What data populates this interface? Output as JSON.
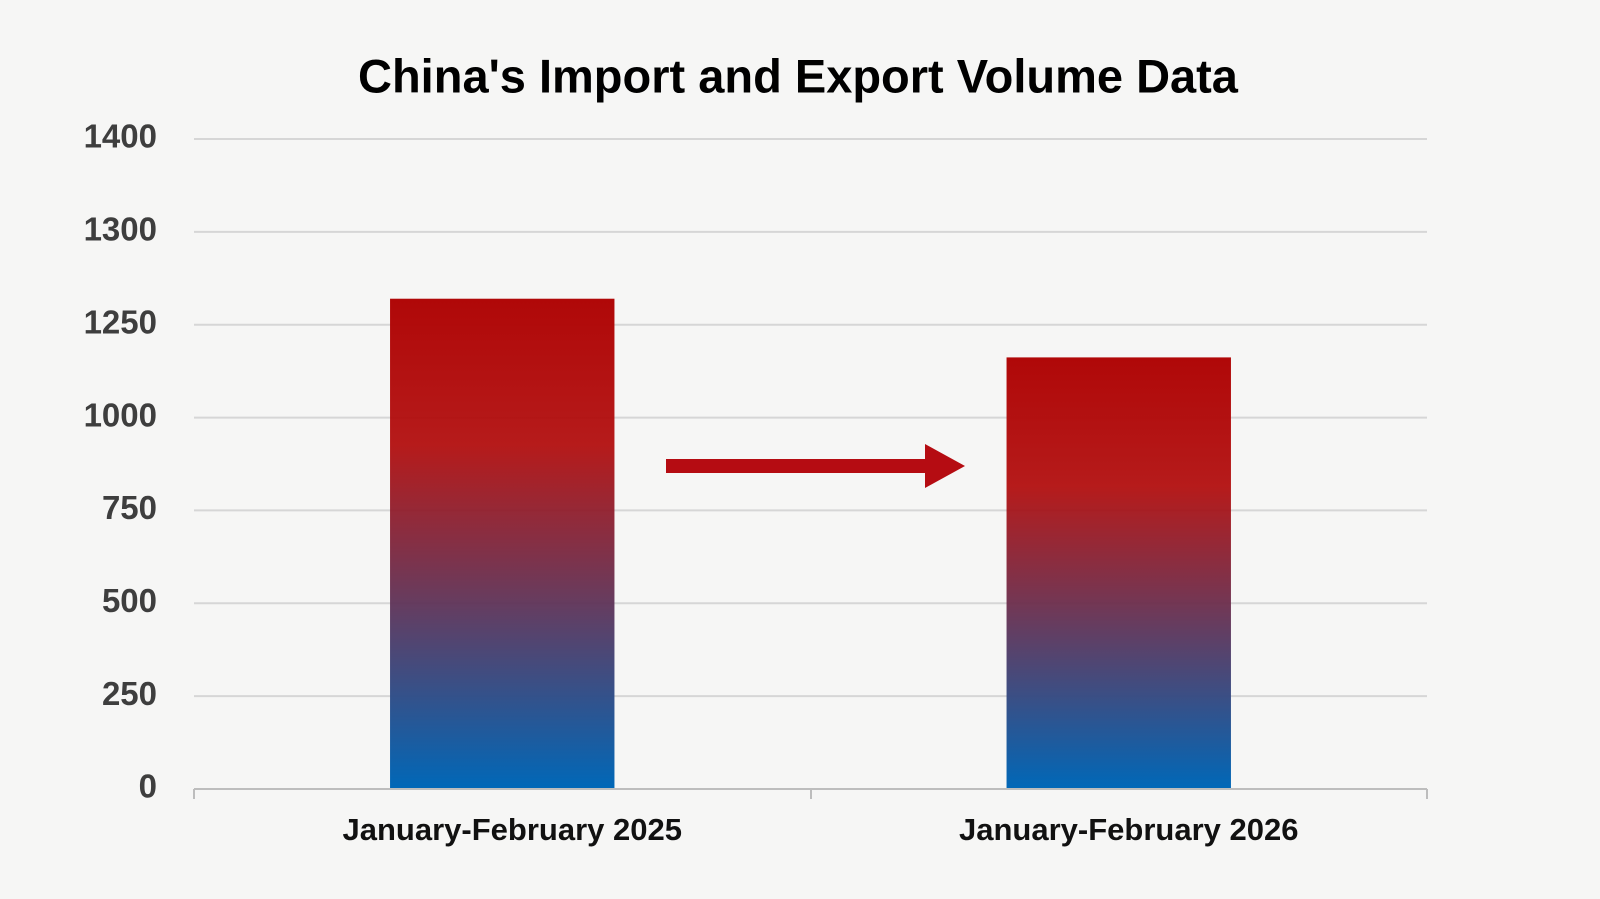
{
  "chart_data": {
    "type": "bar",
    "title": "China's Import and Export Volume Data",
    "categories": [
      "January-February 2025",
      "January-February 2026"
    ],
    "values": [
      1264,
      1162
    ],
    "gradient": [
      "#b00808",
      "#0068b8"
    ],
    "ylim": [
      0,
      1400
    ],
    "yticks": [
      0,
      250,
      500,
      750,
      1000,
      1250,
      1300,
      1400
    ],
    "grid": true
  }
}
